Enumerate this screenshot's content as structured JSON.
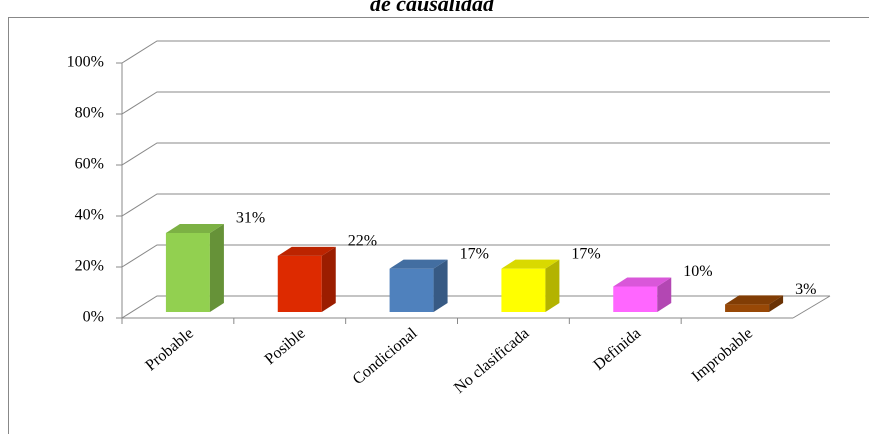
{
  "chart_data": {
    "type": "bar3d",
    "title": "de causalidad",
    "categories": [
      "Probable",
      "Posible",
      "Condicional",
      "No clasificada",
      "Definida",
      "Improbable"
    ],
    "values": [
      31,
      22,
      17,
      17,
      10,
      3
    ],
    "value_labels": [
      "31%",
      "22%",
      "17%",
      "17%",
      "10%",
      "3%"
    ],
    "colors": [
      "#92d050",
      "#dd2a00",
      "#4f81bd",
      "#ffff00",
      "#ff66ff",
      "#984806"
    ],
    "ylim": [
      0,
      100
    ],
    "yticks": [
      {
        "value": 0,
        "label": "0%"
      },
      {
        "value": 20,
        "label": "20%"
      },
      {
        "value": 40,
        "label": "40%"
      },
      {
        "value": 60,
        "label": "60%"
      },
      {
        "value": 80,
        "label": "80%"
      },
      {
        "value": 100,
        "label": "100%"
      }
    ],
    "grid": true
  }
}
